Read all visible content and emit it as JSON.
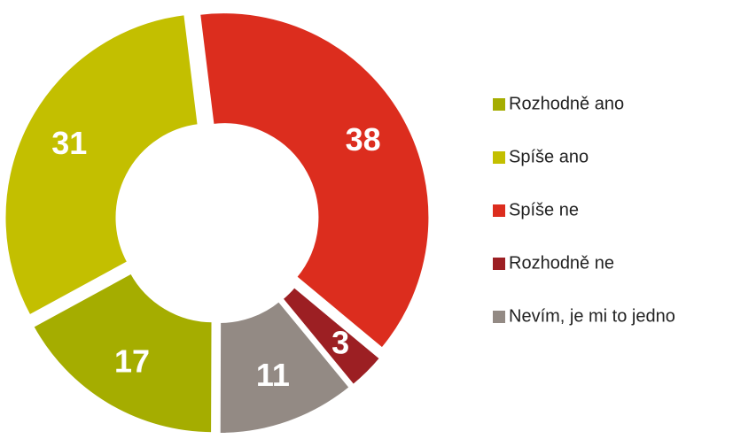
{
  "chart_data": {
    "type": "donut",
    "categories": [
      "Rozhodně ano",
      "Spíše ano",
      "Spíše ne",
      "Rozhodně ne",
      "Nevím, je mi to jedno"
    ],
    "values": [
      17,
      31,
      38,
      3,
      11
    ],
    "colors": [
      "#a5ad00",
      "#c3bf00",
      "#dc2d1e",
      "#9c1f23",
      "#938a84"
    ],
    "legend": "right"
  }
}
